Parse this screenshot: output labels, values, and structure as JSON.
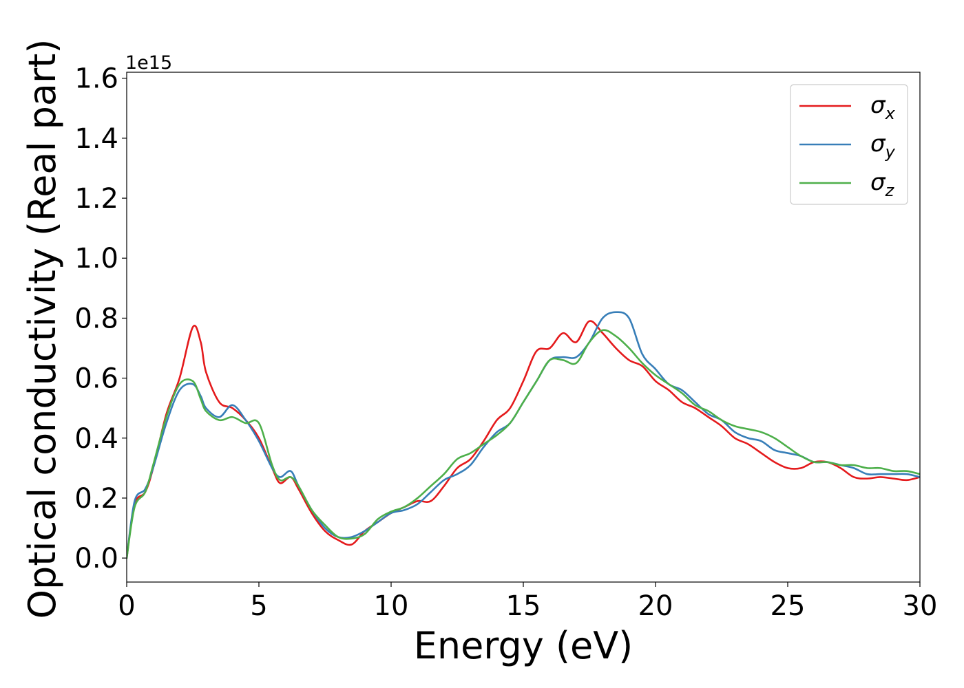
{
  "chart_data": {
    "type": "line",
    "title": "",
    "xlabel": "Energy (eV)",
    "ylabel": "Optical conductivity (Real part)",
    "y_offset_label": "1e15",
    "xlim": [
      0,
      30
    ],
    "ylim": [
      -0.08,
      1.62
    ],
    "xticks": [
      0,
      5,
      10,
      15,
      20,
      25,
      30
    ],
    "xtick_labels": [
      "0",
      "5",
      "10",
      "15",
      "20",
      "25",
      "30"
    ],
    "yticks": [
      0.0,
      0.2,
      0.4,
      0.6,
      0.8,
      1.0,
      1.2,
      1.4,
      1.6
    ],
    "ytick_labels": [
      "0.0",
      "0.2",
      "0.4",
      "0.6",
      "0.8",
      "1.0",
      "1.2",
      "1.4",
      "1.6"
    ],
    "grid": false,
    "legend_position": "top-right",
    "x": [
      0,
      0.3,
      0.7,
      1.0,
      1.5,
      2.0,
      2.5,
      2.8,
      3.0,
      3.5,
      4.0,
      4.5,
      5.0,
      5.5,
      5.8,
      6.2,
      6.5,
      7.0,
      7.5,
      8.0,
      8.5,
      9.0,
      9.5,
      10.0,
      10.5,
      11.0,
      11.5,
      12.0,
      12.5,
      13.0,
      13.5,
      14.0,
      14.5,
      15.0,
      15.5,
      16.0,
      16.5,
      17.0,
      17.5,
      18.0,
      18.5,
      19.0,
      19.5,
      20.0,
      20.5,
      21.0,
      21.5,
      22.0,
      22.5,
      23.0,
      23.5,
      24.0,
      24.5,
      25.0,
      25.5,
      26.0,
      26.5,
      27.0,
      27.5,
      28.0,
      28.5,
      29.0,
      29.5,
      30.0
    ],
    "series": [
      {
        "name": "σx",
        "legend_symbol": "σ",
        "legend_subscript": "x",
        "color": "#e41a1c",
        "values": [
          0.0,
          0.18,
          0.22,
          0.3,
          0.48,
          0.6,
          0.77,
          0.72,
          0.62,
          0.52,
          0.5,
          0.46,
          0.4,
          0.3,
          0.25,
          0.27,
          0.23,
          0.15,
          0.09,
          0.06,
          0.045,
          0.09,
          0.12,
          0.15,
          0.17,
          0.19,
          0.19,
          0.24,
          0.3,
          0.33,
          0.39,
          0.46,
          0.5,
          0.59,
          0.69,
          0.7,
          0.75,
          0.72,
          0.79,
          0.75,
          0.7,
          0.66,
          0.64,
          0.59,
          0.56,
          0.52,
          0.5,
          0.47,
          0.44,
          0.4,
          0.38,
          0.35,
          0.32,
          0.3,
          0.3,
          0.32,
          0.32,
          0.3,
          0.27,
          0.265,
          0.27,
          0.265,
          0.26,
          0.27
        ]
      },
      {
        "name": "σy",
        "legend_symbol": "σ",
        "legend_subscript": "y",
        "color": "#377eb8",
        "values": [
          0.0,
          0.19,
          0.23,
          0.3,
          0.45,
          0.56,
          0.58,
          0.54,
          0.5,
          0.47,
          0.51,
          0.46,
          0.39,
          0.3,
          0.27,
          0.29,
          0.24,
          0.16,
          0.1,
          0.07,
          0.07,
          0.09,
          0.12,
          0.15,
          0.16,
          0.18,
          0.22,
          0.26,
          0.28,
          0.31,
          0.37,
          0.42,
          0.45,
          0.52,
          0.59,
          0.66,
          0.67,
          0.67,
          0.72,
          0.8,
          0.82,
          0.8,
          0.68,
          0.63,
          0.58,
          0.56,
          0.52,
          0.48,
          0.46,
          0.42,
          0.4,
          0.39,
          0.36,
          0.35,
          0.34,
          0.32,
          0.32,
          0.31,
          0.3,
          0.28,
          0.28,
          0.28,
          0.28,
          0.27
        ]
      },
      {
        "name": "σz",
        "legend_symbol": "σ",
        "legend_subscript": "z",
        "color": "#4daf4a",
        "values": [
          0.0,
          0.17,
          0.22,
          0.31,
          0.47,
          0.58,
          0.59,
          0.53,
          0.49,
          0.46,
          0.47,
          0.45,
          0.45,
          0.31,
          0.26,
          0.27,
          0.24,
          0.16,
          0.11,
          0.07,
          0.065,
          0.08,
          0.13,
          0.155,
          0.17,
          0.2,
          0.24,
          0.28,
          0.33,
          0.35,
          0.38,
          0.41,
          0.45,
          0.52,
          0.59,
          0.66,
          0.66,
          0.65,
          0.72,
          0.76,
          0.74,
          0.7,
          0.65,
          0.61,
          0.58,
          0.55,
          0.51,
          0.49,
          0.46,
          0.44,
          0.43,
          0.42,
          0.4,
          0.37,
          0.34,
          0.32,
          0.32,
          0.31,
          0.31,
          0.3,
          0.3,
          0.29,
          0.29,
          0.28
        ]
      }
    ]
  }
}
